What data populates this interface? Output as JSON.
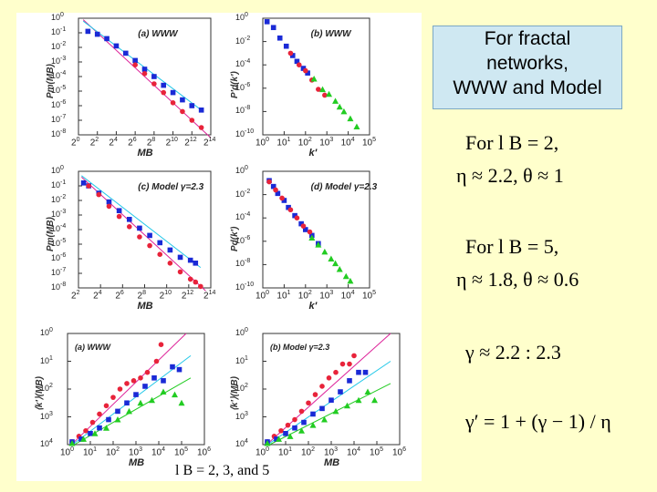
{
  "callout": {
    "line1": "For fractal",
    "line2": "networks,",
    "line3": "WWW and Model"
  },
  "equations": {
    "e1": "For l B = 2,",
    "e2": "η ≈ 2.2,  θ ≈ 1",
    "e3": "For l B = 5,",
    "e4": "η ≈ 1.8,  θ ≈ 0.6",
    "e5": "γ ≈ 2.2 : 2.3",
    "e6": "γ′ = 1 + (γ − 1) / η"
  },
  "caption": "l B = 2, 3,  and 5",
  "colors": {
    "red": "#e8233a",
    "blue": "#1a2ad6",
    "green": "#22cc22",
    "cyan": "#22c8e8",
    "magenta": "#dd2299"
  },
  "chart_data": [
    {
      "id": "a",
      "type": "scatter",
      "title": "(a) WWW",
      "xlabel": "M_B",
      "ylabel": "P_m(M_B)",
      "xlog": 2,
      "ylog": 10,
      "xticks": [
        "2^0",
        "2^2",
        "2^4",
        "2^6",
        "2^8",
        "2^10",
        "2^12",
        "2^14"
      ],
      "yticks": [
        "10^0",
        "10^-1",
        "10^-2",
        "10^-3",
        "10^-4",
        "10^-5",
        "10^-6",
        "10^-7",
        "10^-8"
      ],
      "xlim": [
        0,
        14
      ],
      "ylim": [
        -8,
        0
      ],
      "series": [
        {
          "color": "blue",
          "x": [
            1,
            2,
            3,
            4,
            5,
            6,
            7,
            8,
            9,
            10,
            11,
            12,
            13
          ],
          "y": [
            -0.9,
            -1.1,
            -1.4,
            -1.9,
            -2.4,
            -2.9,
            -3.5,
            -4.0,
            -4.6,
            -5.1,
            -5.6,
            -6.0,
            -6.3
          ]
        },
        {
          "color": "red",
          "x": [
            6,
            7,
            8,
            9,
            10,
            11,
            12,
            13
          ],
          "y": [
            -3.2,
            -3.8,
            -4.5,
            -5.1,
            -5.8,
            -6.4,
            -7.0,
            -7.5
          ]
        }
      ],
      "lines": [
        {
          "color": "magenta",
          "x": [
            0.5,
            14
          ],
          "y": [
            -0.1,
            -8.2
          ]
        },
        {
          "color": "cyan",
          "x": [
            0.5,
            13
          ],
          "y": [
            -0.2,
            -6.3
          ]
        }
      ]
    },
    {
      "id": "b",
      "type": "scatter",
      "title": "(b) WWW",
      "xlabel": "k′",
      "ylabel": "P′d(k′)",
      "xlog": 10,
      "ylog": 10,
      "xticks": [
        "10^0",
        "10^1",
        "10^2",
        "10^3",
        "10^4",
        "10^5"
      ],
      "yticks": [
        "10^0",
        "10^-2",
        "10^-4",
        "10^-6",
        "10^-8",
        "10^-10"
      ],
      "xlim": [
        0,
        5
      ],
      "ylim": [
        -10,
        0
      ],
      "series": [
        {
          "color": "blue",
          "x": [
            0.2,
            0.5,
            0.8,
            1.1,
            1.4,
            1.6,
            1.9,
            2.1
          ],
          "y": [
            -0.3,
            -0.8,
            -1.7,
            -2.4,
            -3.2,
            -3.7,
            -4.3,
            -4.7
          ]
        },
        {
          "color": "red",
          "x": [
            1.3,
            1.7,
            2.0,
            2.3,
            2.6,
            2.9
          ],
          "y": [
            -3.0,
            -4.0,
            -4.5,
            -5.3,
            -6.1,
            -6.6
          ]
        },
        {
          "color": "green",
          "x": [
            2.4,
            2.8,
            3.1,
            3.4,
            3.6,
            3.8,
            4.1,
            4.4
          ],
          "y": [
            -5.2,
            -6.1,
            -6.5,
            -7.1,
            -7.6,
            -8.0,
            -8.6,
            -9.3
          ]
        }
      ]
    },
    {
      "id": "c",
      "type": "scatter",
      "title": "(c) Model γ=2.3",
      "xlabel": "M_B",
      "ylabel": "P_m(M_B)",
      "xlog": 2,
      "ylog": 10,
      "xticks": [
        "2^2",
        "2^4",
        "2^6",
        "2^8",
        "2^10",
        "2^12",
        "2^14"
      ],
      "yticks": [
        "10^0",
        "10^-1",
        "10^-2",
        "10^-3",
        "10^-4",
        "10^-5",
        "10^-6",
        "10^-7",
        "10^-8"
      ],
      "xlim": [
        1,
        14
      ],
      "ylim": [
        -8,
        0
      ],
      "series": [
        {
          "color": "blue",
          "x": [
            1.5,
            2,
            3,
            4,
            5,
            6,
            7,
            8,
            9,
            10,
            11,
            12,
            12.5
          ],
          "y": [
            -0.8,
            -1.0,
            -1.5,
            -2.1,
            -2.7,
            -3.3,
            -3.9,
            -4.4,
            -4.9,
            -5.4,
            -5.9,
            -6.1,
            -6.3
          ]
        },
        {
          "color": "red",
          "x": [
            2,
            3,
            4,
            5,
            6,
            7,
            8,
            9,
            10,
            11,
            12,
            12.5,
            13
          ],
          "y": [
            -1.0,
            -1.6,
            -2.4,
            -3.1,
            -3.8,
            -4.5,
            -5.1,
            -5.7,
            -6.3,
            -6.9,
            -7.4,
            -7.6,
            -7.9
          ]
        }
      ],
      "lines": [
        {
          "color": "magenta",
          "x": [
            1.3,
            13.5
          ],
          "y": [
            -0.4,
            -8.2
          ]
        },
        {
          "color": "cyan",
          "x": [
            1.3,
            13
          ],
          "y": [
            -0.3,
            -6.6
          ]
        }
      ]
    },
    {
      "id": "d",
      "type": "scatter",
      "title": "(d) Model γ=2.3",
      "xlabel": "k′",
      "ylabel": "P_d(k′)",
      "xlog": 10,
      "ylog": 10,
      "xticks": [
        "10^0",
        "10^1",
        "10^2",
        "10^3",
        "10^4",
        "10^5"
      ],
      "yticks": [
        "10^0",
        "10^-2",
        "10^-4",
        "10^-6",
        "10^-8",
        "10^-10"
      ],
      "xlim": [
        0,
        5
      ],
      "ylim": [
        -10,
        0
      ],
      "series": [
        {
          "color": "blue",
          "x": [
            0.3,
            0.5,
            0.7,
            1.0,
            1.2,
            1.5,
            1.8,
            2.0,
            2.3,
            2.6
          ],
          "y": [
            -0.8,
            -1.3,
            -1.9,
            -2.5,
            -3.1,
            -3.8,
            -4.5,
            -5.0,
            -5.5,
            -6.2
          ]
        },
        {
          "color": "red",
          "x": [
            0.3,
            0.6,
            0.9,
            1.3,
            1.6,
            1.9,
            2.2
          ],
          "y": [
            -0.9,
            -1.6,
            -2.3,
            -3.3,
            -4.0,
            -4.7,
            -5.2
          ]
        },
        {
          "color": "green",
          "x": [
            2.3,
            2.6,
            2.9,
            3.2,
            3.4,
            3.6,
            3.9,
            4.1
          ],
          "y": [
            -5.7,
            -6.3,
            -6.9,
            -7.5,
            -7.9,
            -8.4,
            -9.0,
            -9.4
          ]
        }
      ]
    },
    {
      "id": "e",
      "type": "scatter",
      "title": "(a) WWW",
      "xlabel": "M_B",
      "ylabel": "⟨k′⟩(M_B)",
      "xlog": 10,
      "ylog": 10,
      "xticks": [
        "10^0",
        "10^1",
        "10^2",
        "10^3",
        "10^4",
        "10^5",
        "10^6"
      ],
      "yticks": [
        "10^0",
        "10^1",
        "10^2",
        "10^3",
        "10^4"
      ],
      "xlim": [
        0,
        6
      ],
      "ylim": [
        0,
        4
      ],
      "series": [
        {
          "color": "red",
          "x": [
            0.2,
            0.5,
            0.8,
            1.1,
            1.4,
            1.7,
            2.0,
            2.3,
            2.6,
            2.9,
            3.2,
            3.5,
            3.9,
            4.1
          ],
          "y": [
            0.1,
            0.3,
            0.5,
            0.8,
            1.1,
            1.4,
            1.7,
            2.0,
            2.2,
            2.3,
            2.4,
            2.6,
            3.0,
            3.6
          ]
        },
        {
          "color": "blue",
          "x": [
            0.2,
            0.6,
            1.0,
            1.4,
            1.8,
            2.2,
            2.6,
            3.0,
            3.4,
            3.8,
            4.2,
            4.6,
            4.9
          ],
          "y": [
            0.1,
            0.2,
            0.4,
            0.6,
            0.9,
            1.2,
            1.5,
            1.8,
            2.1,
            2.4,
            2.3,
            2.8,
            2.7
          ]
        },
        {
          "color": "green",
          "x": [
            0.2,
            0.7,
            1.2,
            1.7,
            2.2,
            2.7,
            3.2,
            3.7,
            4.2,
            4.7,
            5.0
          ],
          "y": [
            0.05,
            0.2,
            0.4,
            0.6,
            0.9,
            1.2,
            1.5,
            1.6,
            1.9,
            1.8,
            1.5
          ]
        }
      ],
      "lines": [
        {
          "color": "magenta",
          "x": [
            0.3,
            5.2
          ],
          "y": [
            0.1,
            4.0
          ]
        },
        {
          "color": "cyan",
          "x": [
            0.3,
            5.4
          ],
          "y": [
            0.05,
            3.2
          ]
        },
        {
          "color": "green",
          "x": [
            0.3,
            5.4
          ],
          "y": [
            0.0,
            2.4
          ]
        }
      ]
    },
    {
      "id": "f",
      "type": "scatter",
      "title": "(b) Model γ=2.3",
      "xlabel": "M_B",
      "ylabel": "⟨k′⟩(M_B)",
      "xlog": 10,
      "ylog": 10,
      "xticks": [
        "10^0",
        "10^1",
        "10^2",
        "10^3",
        "10^4",
        "10^5",
        "10^6"
      ],
      "yticks": [
        "10^0",
        "10^1",
        "10^2",
        "10^3",
        "10^4"
      ],
      "xlim": [
        0,
        6
      ],
      "ylim": [
        0,
        4
      ],
      "series": [
        {
          "color": "red",
          "x": [
            0.2,
            0.5,
            0.8,
            1.1,
            1.4,
            1.7,
            2.0,
            2.3,
            2.6,
            2.9,
            3.2,
            3.5,
            3.8,
            4.0
          ],
          "y": [
            0.1,
            0.3,
            0.5,
            0.7,
            0.9,
            1.2,
            1.5,
            1.8,
            2.1,
            2.4,
            2.6,
            2.9,
            2.9,
            3.2
          ]
        },
        {
          "color": "blue",
          "x": [
            0.2,
            0.6,
            1.0,
            1.4,
            1.8,
            2.2,
            2.6,
            3.0,
            3.4,
            3.8,
            4.2,
            4.5
          ],
          "y": [
            0.1,
            0.2,
            0.4,
            0.6,
            0.8,
            1.1,
            1.3,
            1.6,
            1.9,
            2.3,
            2.6,
            2.6
          ]
        },
        {
          "color": "green",
          "x": [
            0.2,
            0.7,
            1.2,
            1.7,
            2.2,
            2.7,
            3.2,
            3.7,
            4.2,
            4.6,
            4.9
          ],
          "y": [
            0.05,
            0.2,
            0.3,
            0.5,
            0.7,
            0.9,
            1.2,
            1.4,
            1.6,
            1.9,
            1.6
          ]
        }
      ],
      "lines": [
        {
          "color": "magenta",
          "x": [
            0.3,
            5.6
          ],
          "y": [
            0.1,
            4.0
          ]
        },
        {
          "color": "cyan",
          "x": [
            0.3,
            5.6
          ],
          "y": [
            0.05,
            3.0
          ]
        },
        {
          "color": "green",
          "x": [
            0.3,
            5.6
          ],
          "y": [
            0.0,
            2.2
          ]
        }
      ]
    }
  ]
}
